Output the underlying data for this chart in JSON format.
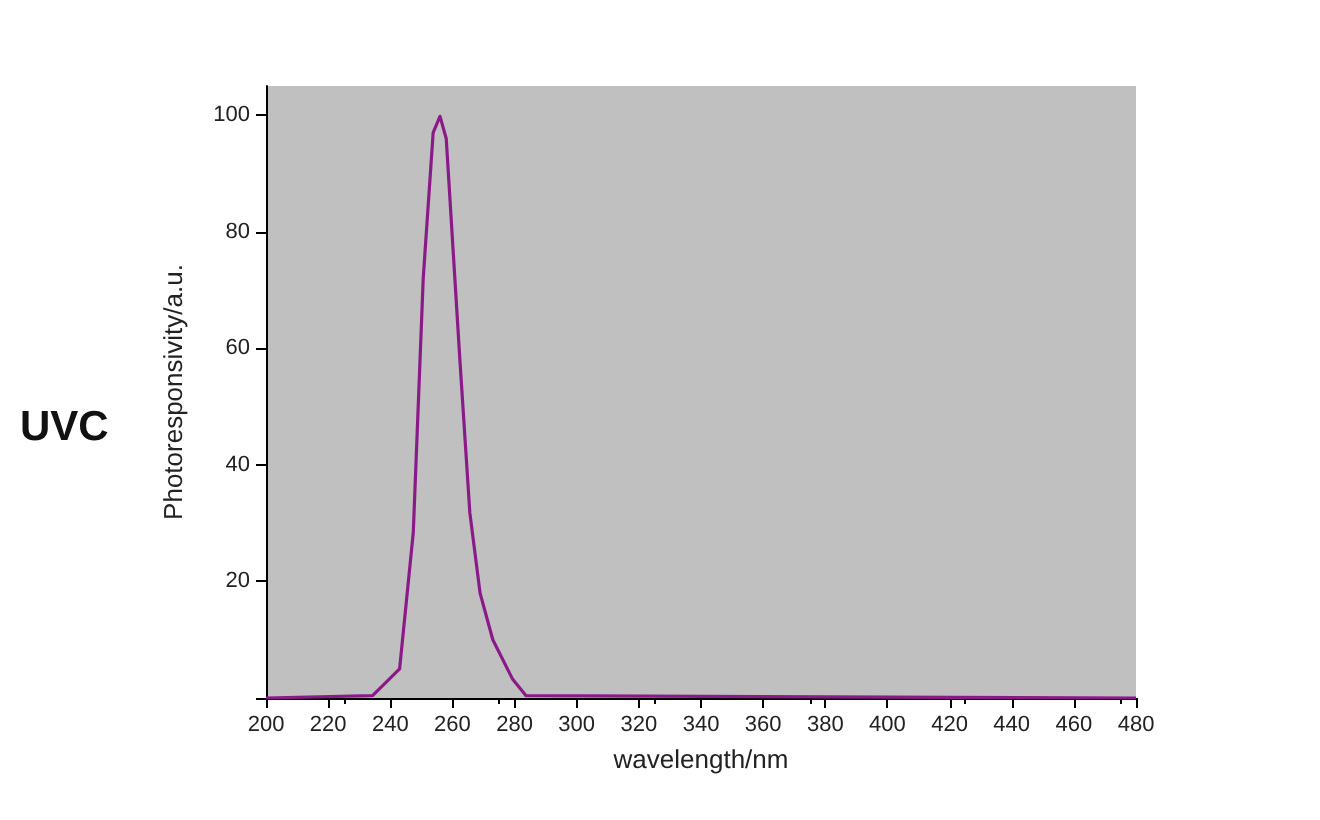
{
  "chart_data": {
    "type": "line",
    "xlabel": "wavelength/nm",
    "ylabel": "Photoresponsivity/a.u.",
    "annotations": [
      "UVC"
    ],
    "x": [
      200,
      234.3,
      243,
      247.4,
      250.6,
      253.8,
      256,
      258,
      262.4,
      265.6,
      268.9,
      273,
      279.4,
      283.7,
      480
    ],
    "series": [
      {
        "color": "#8b1a89",
        "values": [
          0,
          0.4,
          5,
          28.4,
          72,
          97,
          99.8,
          96,
          58,
          31.8,
          18,
          10,
          3.2,
          0.4,
          0
        ]
      }
    ],
    "xlim": [
      200,
      480
    ],
    "xticks": [
      200,
      220,
      240,
      260,
      280,
      300,
      320,
      340,
      360,
      380,
      400,
      420,
      440,
      460,
      480
    ],
    "ylim": [
      0,
      105
    ],
    "yticks": [
      {
        "value": 0,
        "label": null
      },
      20,
      40,
      60,
      80,
      100
    ],
    "grid": false,
    "marker": "none",
    "line_style": "solid"
  }
}
